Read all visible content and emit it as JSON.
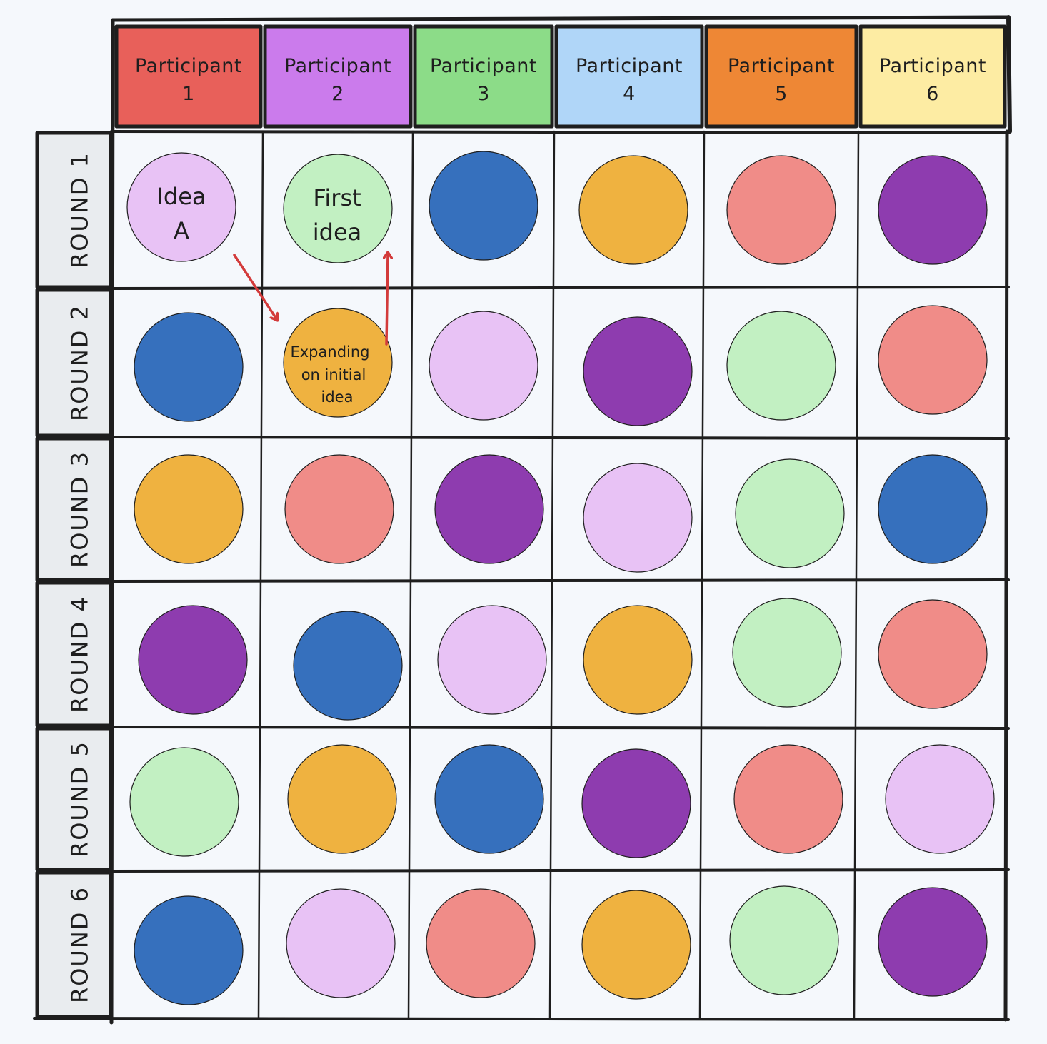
{
  "diagram": {
    "colors": {
      "light_purple": "#e8c2f5",
      "light_green": "#c2f0c2",
      "blue": "#3670bd",
      "orange": "#efb240",
      "salmon": "#f08c88",
      "purple": "#8e3caf"
    },
    "participants": [
      {
        "line1": "Participant",
        "line2": "1",
        "color": "#e8605a"
      },
      {
        "line1": "Participant",
        "line2": "2",
        "color": "#cb7bec"
      },
      {
        "line1": "Participant",
        "line2": "3",
        "color": "#8cdc88"
      },
      {
        "line1": "Participant",
        "line2": "4",
        "color": "#b0d6f8"
      },
      {
        "line1": "Participant",
        "line2": "5",
        "color": "#ee8735"
      },
      {
        "line1": "Participant",
        "line2": "6",
        "color": "#fdeca3"
      }
    ],
    "rounds": [
      "ROUND 1",
      "ROUND 2",
      "ROUND 3",
      "ROUND 4",
      "ROUND 5",
      "ROUND 6"
    ],
    "grid": [
      [
        "light_purple",
        "light_green",
        "blue",
        "orange",
        "salmon",
        "purple"
      ],
      [
        "blue",
        "orange",
        "light_purple",
        "purple",
        "light_green",
        "salmon"
      ],
      [
        "orange",
        "salmon",
        "purple",
        "light_purple",
        "light_green",
        "blue"
      ],
      [
        "purple",
        "blue",
        "light_purple",
        "orange",
        "light_green",
        "salmon"
      ],
      [
        "light_green",
        "orange",
        "blue",
        "purple",
        "salmon",
        "light_purple"
      ],
      [
        "blue",
        "light_purple",
        "salmon",
        "orange",
        "light_green",
        "purple"
      ]
    ],
    "notes": {
      "idea_a": [
        "Idea",
        "A"
      ],
      "first_idea": [
        "First",
        "idea"
      ],
      "expanding": [
        "Expanding",
        "on initial",
        "idea"
      ]
    }
  }
}
